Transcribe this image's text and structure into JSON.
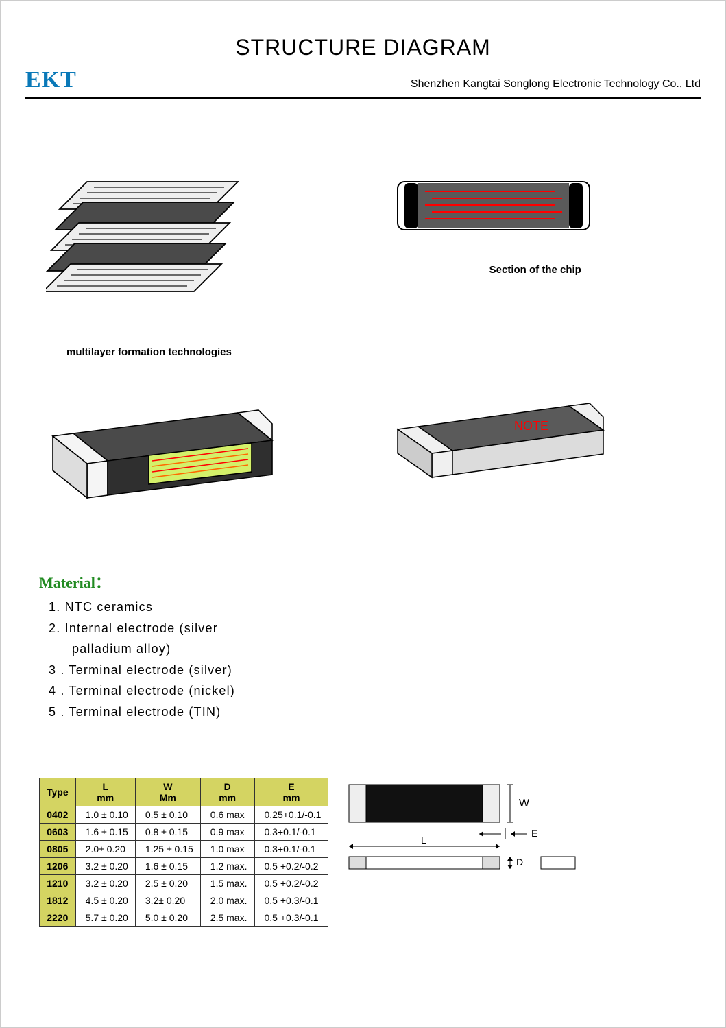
{
  "header": {
    "title": "STRUCTURE  DIAGRAM",
    "logo": "EKT",
    "company": "Shenzhen Kangtai Songlong Electronic Technology Co., Ltd"
  },
  "captions": {
    "section_of_chip": "Section of the chip",
    "multilayer": "multilayer formation technologies",
    "note": "NOTE"
  },
  "material": {
    "heading": "Material：",
    "items": [
      "1.  NTC ceramics",
      "2.  Internal electrode (silver",
      "palladium alloy)",
      "3 . Terminal electrode (silver)",
      "4 . Terminal electrode (nickel)",
      "5 . Terminal electrode (TIN)"
    ]
  },
  "colors": {
    "logo": "#0a79b8",
    "material_heading": "#228B22",
    "table_header_bg": "#d4d462",
    "note": "#ff0000",
    "chip_body": "#5a5a5a",
    "chip_end": "#000000",
    "electrode_line": "#ff0000",
    "cutaway_inner": "#d4f06a"
  },
  "table": {
    "headers": [
      {
        "main": "Type",
        "sub": ""
      },
      {
        "main": "L",
        "sub": "mm"
      },
      {
        "main": "W",
        "sub": "Mm"
      },
      {
        "main": "D",
        "sub": "mm"
      },
      {
        "main": "E",
        "sub": "mm"
      }
    ],
    "rows": [
      {
        "type": "0402",
        "L": "1.0 ± 0.10",
        "W": "0.5 ± 0.10",
        "D": "0.6 max",
        "E": "0.25+0.1/-0.1"
      },
      {
        "type": "0603",
        "L": "1.6 ± 0.15",
        "W": "0.8 ± 0.15",
        "D": "0.9 max",
        "E": "0.3+0.1/-0.1"
      },
      {
        "type": "0805",
        "L": "2.0± 0.20",
        "W": "1.25 ± 0.15",
        "D": "1.0 max",
        "E": "0.3+0.1/-0.1"
      },
      {
        "type": "1206",
        "L": "3.2 ± 0.20",
        "W": "1.6 ± 0.15",
        "D": "1.2 max.",
        "E": "0.5 +0.2/-0.2"
      },
      {
        "type": "1210",
        "L": "3.2 ± 0.20",
        "W": "2.5 ± 0.20",
        "D": "1.5 max.",
        "E": "0.5 +0.2/-0.2"
      },
      {
        "type": "1812",
        "L": "4.5 ± 0.20",
        "W": "3.2± 0.20",
        "D": "2.0 max.",
        "E": "0.5 +0.3/-0.1"
      },
      {
        "type": "2220",
        "L": "5.7 ± 0.20",
        "W": "5.0 ± 0.20",
        "D": "2.5 max.",
        "E": "0.5 +0.3/-0.1"
      }
    ]
  },
  "dim_labels": {
    "W": "W",
    "E": "E",
    "L": "L",
    "D": "D"
  },
  "diagram_styles": {
    "multilayer_layers": 5,
    "cutaway_internal_lines": 4,
    "section_lines": 5
  }
}
